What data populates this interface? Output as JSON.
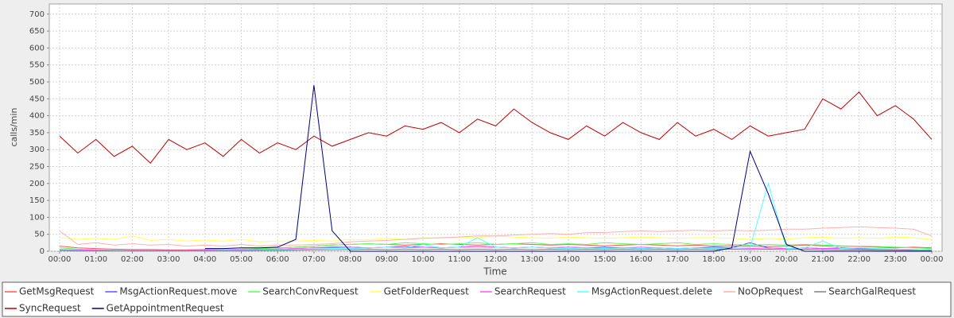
{
  "chart_data": {
    "type": "line",
    "y_label": "calls/min",
    "x_label": "Time",
    "x": [
      0,
      30,
      60,
      90,
      120,
      150,
      180,
      210,
      240,
      270,
      300,
      330,
      360,
      390,
      420,
      450,
      480,
      510,
      540,
      570,
      600,
      630,
      660,
      690,
      720,
      750,
      780,
      810,
      840,
      870,
      900,
      930,
      960,
      990,
      1020,
      1050,
      1080,
      1110,
      1140,
      1170,
      1200,
      1230,
      1260,
      1290,
      1320,
      1350,
      1380,
      1410,
      1440
    ],
    "xlim": [
      -17,
      1457
    ],
    "xticks": [
      {
        "value": 0,
        "label": "00:00"
      },
      {
        "value": 60,
        "label": "01:00"
      },
      {
        "value": 120,
        "label": "02:00"
      },
      {
        "value": 180,
        "label": "03:00"
      },
      {
        "value": 240,
        "label": "04:00"
      },
      {
        "value": 300,
        "label": "05:00"
      },
      {
        "value": 360,
        "label": "06:00"
      },
      {
        "value": 420,
        "label": "07:00"
      },
      {
        "value": 480,
        "label": "08:00"
      },
      {
        "value": 540,
        "label": "09:00"
      },
      {
        "value": 600,
        "label": "10:00"
      },
      {
        "value": 660,
        "label": "11:00"
      },
      {
        "value": 720,
        "label": "12:00"
      },
      {
        "value": 780,
        "label": "13:00"
      },
      {
        "value": 840,
        "label": "14:00"
      },
      {
        "value": 900,
        "label": "15:00"
      },
      {
        "value": 960,
        "label": "16:00"
      },
      {
        "value": 1020,
        "label": "17:00"
      },
      {
        "value": 1080,
        "label": "18:00"
      },
      {
        "value": 1140,
        "label": "19:00"
      },
      {
        "value": 1200,
        "label": "20:00"
      },
      {
        "value": 1260,
        "label": "21:00"
      },
      {
        "value": 1320,
        "label": "22:00"
      },
      {
        "value": 1380,
        "label": "23:00"
      },
      {
        "value": 1440,
        "label": "00:00"
      }
    ],
    "ylim": [
      0,
      730
    ],
    "yticks": [
      0,
      50,
      100,
      150,
      200,
      250,
      300,
      350,
      400,
      450,
      500,
      550,
      600,
      650,
      700
    ],
    "grid": true,
    "legend": "bottom",
    "series": [
      {
        "name": "GetMsgRequest",
        "color": "#ff5555",
        "values": [
          15,
          10,
          8,
          6,
          5,
          5,
          4,
          4,
          5,
          5,
          6,
          8,
          10,
          12,
          15,
          18,
          20,
          22,
          20,
          18,
          20,
          22,
          20,
          18,
          20,
          22,
          20,
          18,
          20,
          18,
          16,
          18,
          20,
          18,
          16,
          18,
          15,
          16,
          15,
          14,
          15,
          18,
          16,
          15,
          14,
          12,
          10,
          12,
          10
        ]
      },
      {
        "name": "MsgActionRequest.move",
        "color": "#5555ff",
        "values": [
          5,
          3,
          2,
          2,
          1,
          1,
          1,
          1,
          2,
          2,
          3,
          4,
          6,
          8,
          10,
          12,
          12,
          10,
          12,
          14,
          12,
          10,
          12,
          14,
          12,
          10,
          12,
          10,
          12,
          10,
          12,
          10,
          8,
          10,
          8,
          10,
          12,
          10,
          25,
          10,
          8,
          10,
          8,
          10,
          8,
          6,
          6,
          5,
          4
        ]
      },
      {
        "name": "SearchConvRequest",
        "color": "#55ff55",
        "values": [
          10,
          6,
          4,
          3,
          2,
          2,
          2,
          2,
          3,
          4,
          6,
          8,
          10,
          12,
          15,
          18,
          20,
          22,
          20,
          25,
          22,
          20,
          22,
          25,
          20,
          22,
          25,
          20,
          22,
          20,
          25,
          22,
          20,
          22,
          25,
          20,
          22,
          20,
          18,
          20,
          18,
          20,
          18,
          16,
          15,
          14,
          12,
          10,
          8
        ]
      },
      {
        "name": "GetFolderRequest",
        "color": "#ffff55",
        "values": [
          40,
          35,
          38,
          35,
          45,
          32,
          35,
          30,
          33,
          30,
          35,
          28,
          30,
          30,
          32,
          30,
          35,
          33,
          38,
          35,
          40,
          38,
          42,
          40,
          45,
          42,
          40,
          38,
          42,
          40,
          38,
          40,
          42,
          40,
          38,
          40,
          40,
          38,
          35,
          38,
          36,
          40,
          42,
          38,
          40,
          38,
          42,
          40,
          35
        ]
      },
      {
        "name": "SearchRequest",
        "color": "#ff55ff",
        "values": [
          5,
          4,
          3,
          2,
          2,
          2,
          2,
          2,
          3,
          3,
          4,
          5,
          6,
          8,
          10,
          10,
          12,
          10,
          12,
          10,
          12,
          10,
          12,
          14,
          12,
          10,
          12,
          10,
          12,
          10,
          8,
          10,
          12,
          10,
          8,
          10,
          8,
          10,
          8,
          10,
          8,
          10,
          8,
          8,
          6,
          6,
          5,
          5,
          4
        ]
      },
      {
        "name": "MsgActionRequest.delete",
        "color": "#55ffff",
        "values": [
          3,
          2,
          1,
          1,
          1,
          1,
          1,
          1,
          1,
          2,
          2,
          3,
          4,
          5,
          6,
          8,
          8,
          10,
          12,
          10,
          20,
          10,
          12,
          40,
          12,
          10,
          12,
          10,
          8,
          10,
          8,
          10,
          8,
          10,
          8,
          10,
          8,
          10,
          10,
          200,
          8,
          10,
          30,
          8,
          10,
          8,
          6,
          5,
          4
        ]
      },
      {
        "name": "NoOpRequest",
        "color": "#ffafaf",
        "values": [
          60,
          20,
          25,
          18,
          22,
          18,
          20,
          15,
          18,
          15,
          20,
          15,
          18,
          18,
          20,
          22,
          28,
          30,
          32,
          35,
          38,
          40,
          42,
          45,
          45,
          48,
          50,
          52,
          50,
          55,
          55,
          58,
          60,
          58,
          60,
          62,
          60,
          62,
          60,
          62,
          65,
          65,
          68,
          70,
          72,
          70,
          68,
          65,
          45
        ]
      },
      {
        "name": "SearchGalRequest",
        "color": "#808080",
        "values": [
          2,
          1,
          1,
          1,
          1,
          1,
          1,
          1,
          1,
          1,
          1,
          2,
          2,
          3,
          4,
          4,
          5,
          6,
          5,
          6,
          5,
          6,
          5,
          6,
          5,
          6,
          5,
          6,
          5,
          6,
          5,
          6,
          5,
          6,
          5,
          6,
          5,
          6,
          5,
          6,
          5,
          6,
          5,
          4,
          4,
          3,
          3,
          2,
          2
        ]
      },
      {
        "name": "SyncRequest",
        "color": "#c00000",
        "values": [
          340,
          290,
          330,
          280,
          310,
          260,
          330,
          300,
          320,
          280,
          330,
          290,
          320,
          300,
          340,
          310,
          330,
          350,
          340,
          370,
          360,
          380,
          350,
          390,
          370,
          420,
          380,
          350,
          330,
          370,
          340,
          380,
          350,
          330,
          380,
          340,
          360,
          330,
          370,
          340,
          350,
          360,
          450,
          420,
          470,
          400,
          430,
          390,
          330
        ]
      },
      {
        "name": "GetAppointmentRequest",
        "color": "#000080",
        "values": [
          null,
          null,
          null,
          null,
          null,
          null,
          null,
          null,
          8,
          8,
          10,
          10,
          12,
          35,
          490,
          60,
          0,
          0,
          0,
          0,
          0,
          0,
          0,
          0,
          0,
          0,
          0,
          0,
          0,
          0,
          0,
          0,
          0,
          0,
          0,
          0,
          0,
          10,
          295,
          170,
          20,
          0,
          0,
          0,
          0,
          0,
          0,
          0,
          0
        ]
      }
    ]
  }
}
